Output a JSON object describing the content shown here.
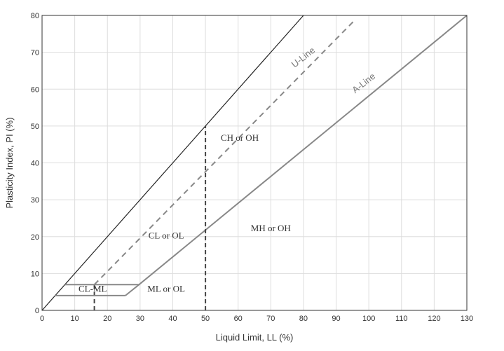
{
  "chart_data": {
    "type": "line",
    "title": "",
    "xlabel": "Liquid Limit, LL (%)",
    "ylabel": "Plasticity Index, PI (%)",
    "xlim": [
      0,
      130
    ],
    "ylim": [
      0,
      80
    ],
    "x_ticks": [
      0,
      10,
      20,
      30,
      40,
      50,
      60,
      70,
      80,
      90,
      100,
      110,
      120,
      130
    ],
    "y_ticks": [
      0,
      10,
      20,
      30,
      40,
      50,
      60,
      70,
      80
    ],
    "grid": true,
    "legend": "none",
    "lines": [
      {
        "id": "limit-line",
        "style": "solid",
        "color": "#222222",
        "points": [
          [
            0,
            0
          ],
          [
            80,
            80
          ]
        ]
      },
      {
        "id": "u-line",
        "name": "U-Line",
        "style": "dashed",
        "color": "#888888",
        "points": [
          [
            16,
            7
          ],
          [
            96,
            79
          ]
        ]
      },
      {
        "id": "a-line",
        "name": "A-Line",
        "style": "solid",
        "color": "#888888",
        "points": [
          [
            25.5,
            4
          ],
          [
            29.7,
            7
          ],
          [
            130,
            80
          ]
        ]
      },
      {
        "id": "ll-50-divider",
        "style": "dashed",
        "color": "#444444",
        "points": [
          [
            50,
            0
          ],
          [
            50,
            50
          ]
        ]
      },
      {
        "id": "ll-16-divider",
        "style": "dashed",
        "color": "#444444",
        "points": [
          [
            16,
            0
          ],
          [
            16,
            7
          ]
        ]
      },
      {
        "id": "cl-ml-top",
        "style": "solid",
        "color": "#888888",
        "points": [
          [
            7,
            7
          ],
          [
            29.7,
            7
          ]
        ]
      },
      {
        "id": "cl-ml-bottom",
        "style": "solid",
        "color": "#888888",
        "points": [
          [
            4,
            4
          ],
          [
            25.5,
            4
          ]
        ]
      }
    ],
    "zones": [
      {
        "label": "CH or OH",
        "x": 60.5,
        "y": 46
      },
      {
        "label": "CL or OL",
        "x": 38,
        "y": 19.5
      },
      {
        "label": "MH or OH",
        "x": 70,
        "y": 21.5
      },
      {
        "label": "ML or OL",
        "x": 38,
        "y": 5
      },
      {
        "label": "CL-ML",
        "x": 15.5,
        "y": 5
      }
    ],
    "line_labels": [
      {
        "text": "U-Line",
        "x": 80.5,
        "y": 68
      },
      {
        "text": "A-Line",
        "x": 99,
        "y": 61
      }
    ]
  }
}
